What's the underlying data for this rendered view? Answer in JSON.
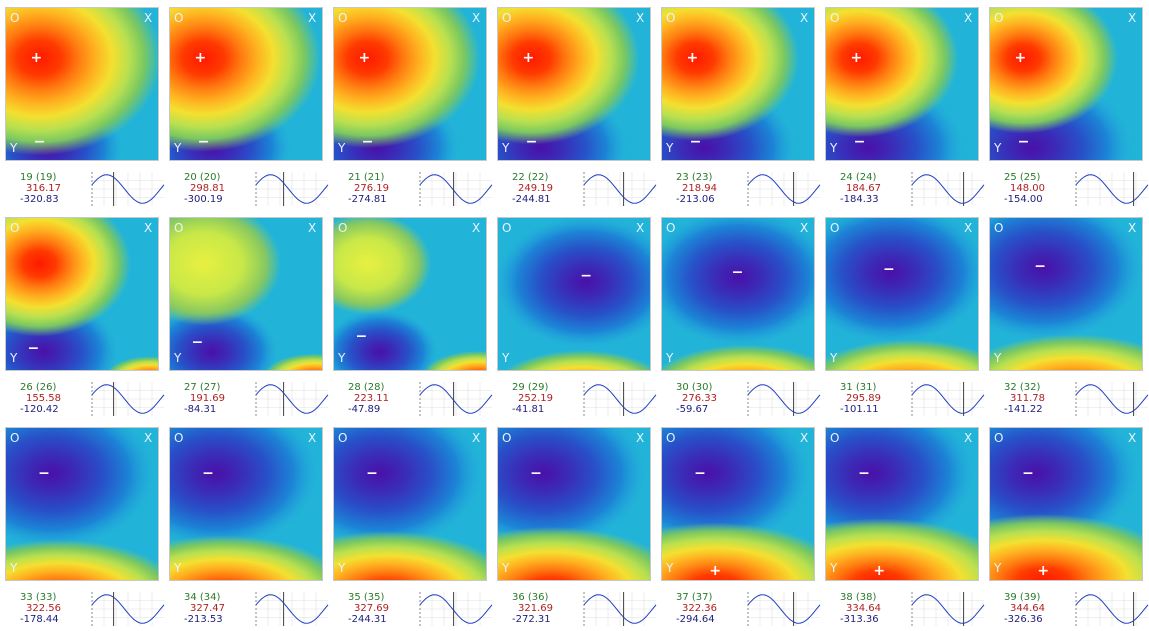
{
  "corner_labels": {
    "origin": "O",
    "x": "X",
    "y": "Y",
    "plus": "+",
    "minus": "−"
  },
  "panels": [
    {
      "frame": "19 (19)",
      "max": "316.17",
      "min": "-320.83"
    },
    {
      "frame": "20 (20)",
      "max": "298.81",
      "min": "-300.19"
    },
    {
      "frame": "21 (21)",
      "max": "276.19",
      "min": "-274.81"
    },
    {
      "frame": "22 (22)",
      "max": "249.19",
      "min": "-244.81"
    },
    {
      "frame": "23 (23)",
      "max": "218.94",
      "min": "-213.06"
    },
    {
      "frame": "24 (24)",
      "max": "184.67",
      "min": "-184.33"
    },
    {
      "frame": "25 (25)",
      "max": "148.00",
      "min": "-154.00"
    },
    {
      "frame": "26 (26)",
      "max": "155.58",
      "min": "-120.42"
    },
    {
      "frame": "27 (27)",
      "max": "191.69",
      "min": "-84.31"
    },
    {
      "frame": "28 (28)",
      "max": "223.11",
      "min": "-47.89"
    },
    {
      "frame": "29 (29)",
      "max": "252.19",
      "min": "-41.81"
    },
    {
      "frame": "30 (30)",
      "max": "276.33",
      "min": "-59.67"
    },
    {
      "frame": "31 (31)",
      "max": "295.89",
      "min": "-101.11"
    },
    {
      "frame": "32 (32)",
      "max": "311.78",
      "min": "-141.22"
    },
    {
      "frame": "33 (33)",
      "max": "322.56",
      "min": "-178.44"
    },
    {
      "frame": "34 (34)",
      "max": "327.47",
      "min": "-213.53"
    },
    {
      "frame": "35 (35)",
      "max": "327.69",
      "min": "-244.31"
    },
    {
      "frame": "36 (36)",
      "max": "321.69",
      "min": "-272.31"
    },
    {
      "frame": "37 (37)",
      "max": "322.36",
      "min": "-294.64"
    },
    {
      "frame": "38 (38)",
      "max": "334.64",
      "min": "-313.36"
    },
    {
      "frame": "39 (39)",
      "max": "344.64",
      "min": "-326.36"
    }
  ]
}
